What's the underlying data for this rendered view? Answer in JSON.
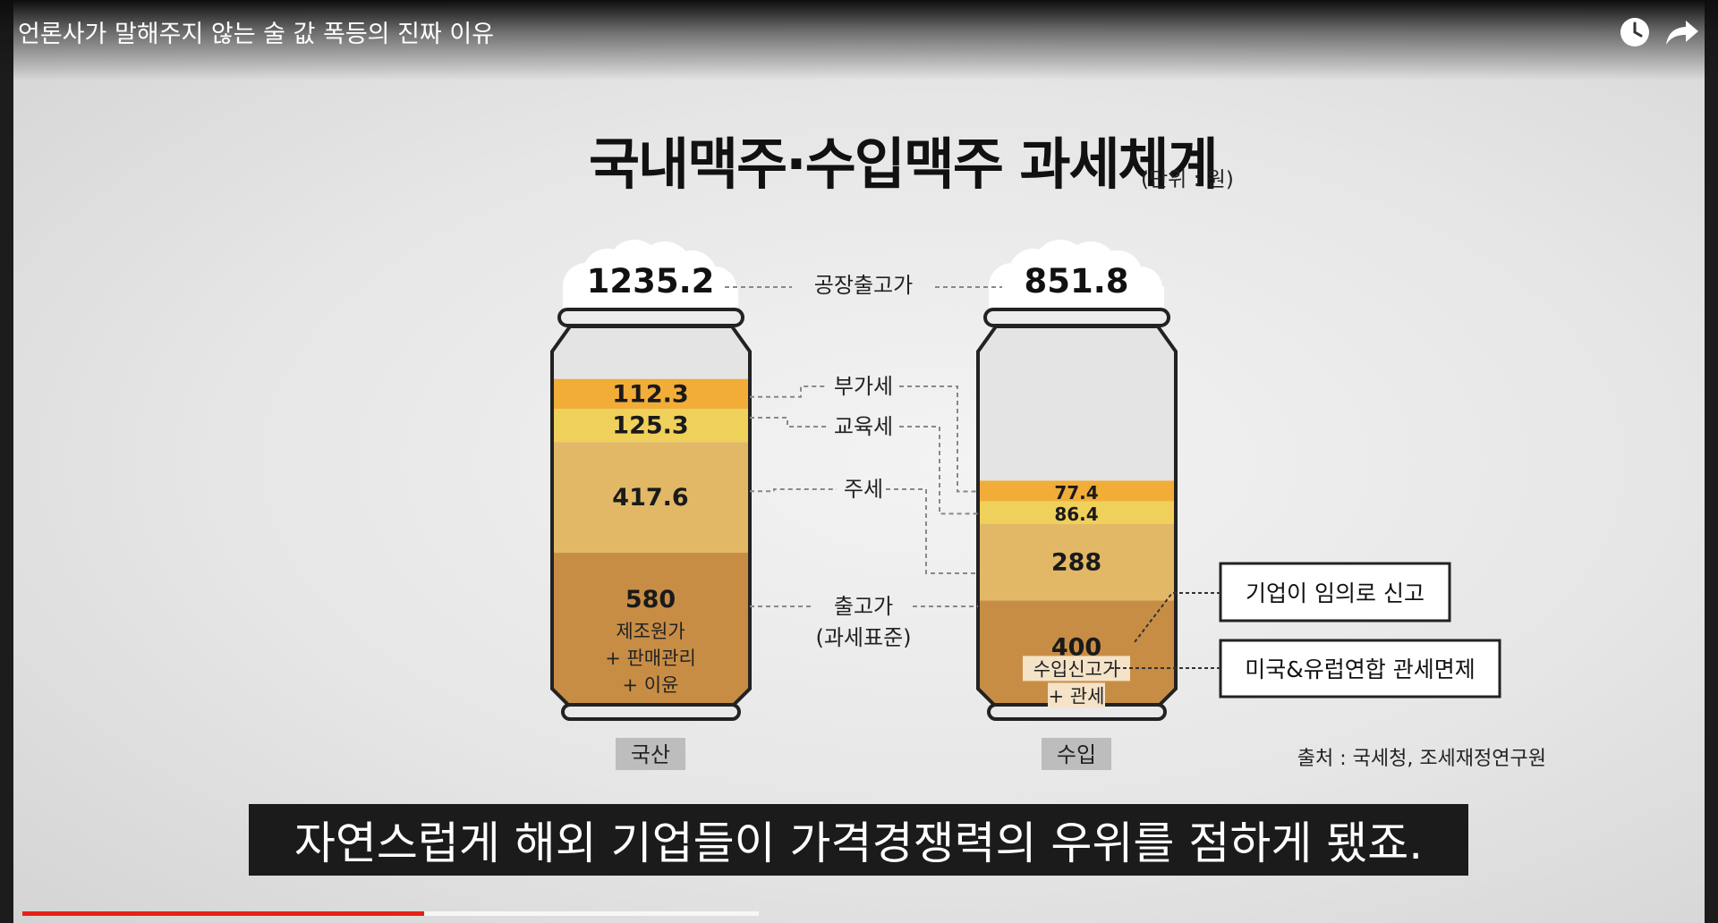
{
  "video": {
    "title": "언론사가 말해주지 않는 술 값 폭등의 진짜 이유",
    "watch_later_icon": "clock-icon",
    "share_icon": "share-arrow-icon",
    "subtitle": "자연스럽게 해외 기업들이 가격경쟁력의 우위를 점하게 됐죠.",
    "progress_played": 0.24,
    "progress_buffered": 0.44
  },
  "chart_data": {
    "type": "stacked-bar",
    "title": "국내맥주·수입맥주 과세체계",
    "unit": "(단위 : 원)",
    "source": "출처 : 국세청, 조세재정연구원",
    "categories": [
      "국산",
      "수입"
    ],
    "totals": {
      "label": "공장출고가",
      "values": [
        "1235.2",
        "851.8"
      ]
    },
    "series": [
      {
        "name": "출고가",
        "name2": "(과세표준)",
        "values": [
          580,
          400
        ],
        "labels": [
          "580",
          "400"
        ],
        "color": "#c88d45"
      },
      {
        "name": "주세",
        "values": [
          417.6,
          288
        ],
        "labels": [
          "417.6",
          "288"
        ],
        "color": "#e2b866"
      },
      {
        "name": "교육세",
        "values": [
          125.3,
          86.4
        ],
        "labels": [
          "125.3",
          "86.4"
        ],
        "color": "#efd05a"
      },
      {
        "name": "부가세",
        "values": [
          112.3,
          77.4
        ],
        "labels": [
          "112.3",
          "77.4"
        ],
        "color": "#f1ad38"
      }
    ],
    "base_notes": {
      "domestic": [
        "제조원가",
        "+ 판매관리",
        "+ 이윤"
      ],
      "import": [
        "수입신고가",
        "+ 관세"
      ]
    },
    "callouts": [
      "기업이 임의로 신고",
      "미국&유럽연합 관세면제"
    ]
  }
}
